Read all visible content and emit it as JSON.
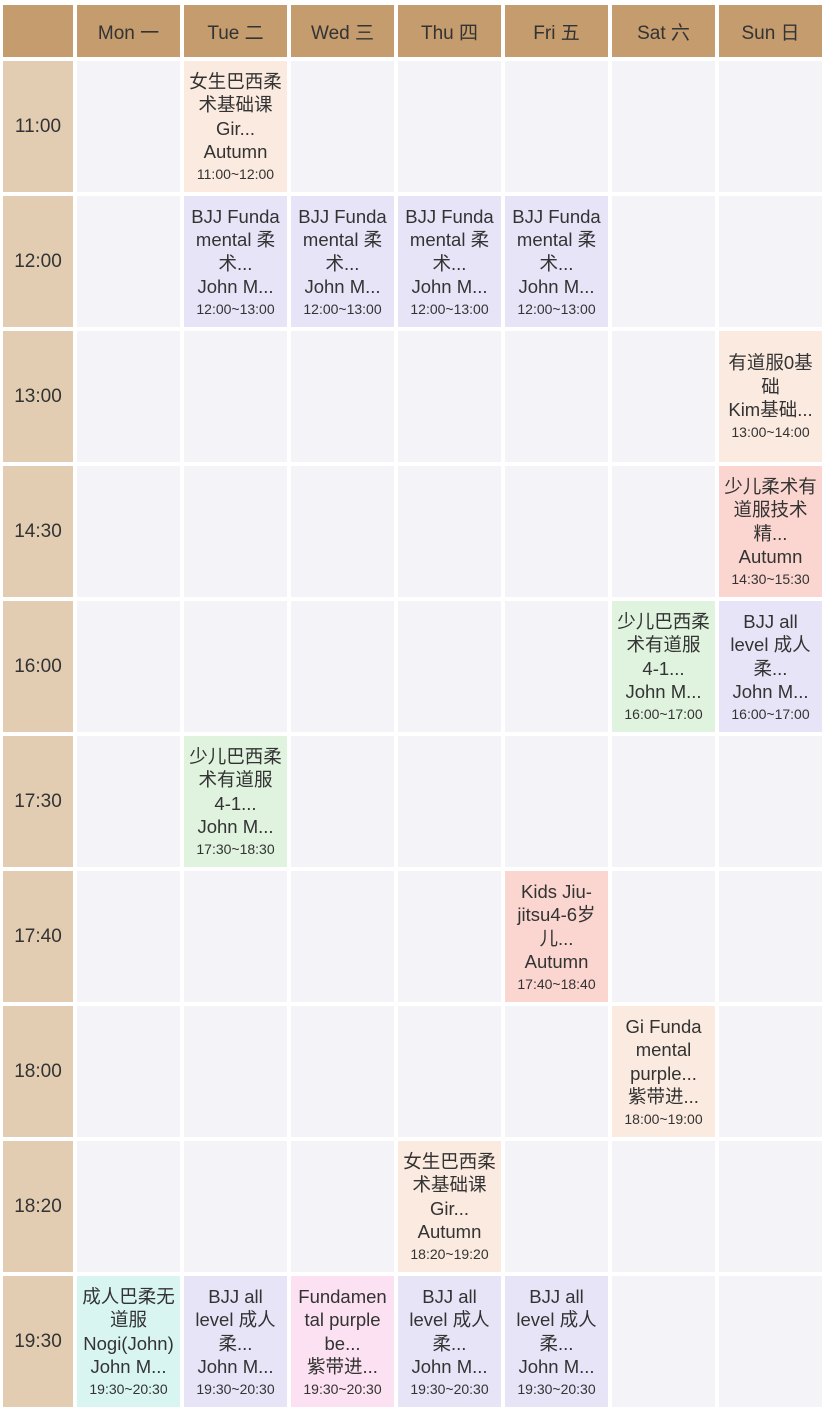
{
  "header": {
    "days": [
      "Mon 一",
      "Tue 二",
      "Wed 三",
      "Thu 四",
      "Fri 五",
      "Sat 六",
      "Sun 日"
    ]
  },
  "times": [
    "11:00",
    "12:00",
    "13:00",
    "14:30",
    "16:00",
    "17:30",
    "17:40",
    "18:00",
    "18:20",
    "19:30"
  ],
  "colors": {
    "header": "#c49c6e",
    "time_column": "#e2cdb2",
    "empty": "#f3f3f8",
    "peach": "#fbeadf",
    "lavender": "#e7e4f8",
    "green": "#dff3df",
    "red": "#fbd6d0",
    "teal": "#d9f5f1",
    "pink": "#fbe1f1"
  },
  "events": [
    {
      "row": 0,
      "day": 1,
      "color": "peach",
      "lines": [
        "女生巴西柔",
        "术基础课",
        "Gir...",
        "Autumn"
      ],
      "time": "11:00~12:00"
    },
    {
      "row": 1,
      "day": 1,
      "color": "lavender",
      "lines": [
        "BJJ Funda",
        "mental 柔",
        "术...",
        "John M..."
      ],
      "time": "12:00~13:00"
    },
    {
      "row": 1,
      "day": 2,
      "color": "lavender",
      "lines": [
        "BJJ Funda",
        "mental 柔",
        "术...",
        "John M..."
      ],
      "time": "12:00~13:00"
    },
    {
      "row": 1,
      "day": 3,
      "color": "lavender",
      "lines": [
        "BJJ Funda",
        "mental 柔",
        "术...",
        "John M..."
      ],
      "time": "12:00~13:00"
    },
    {
      "row": 1,
      "day": 4,
      "color": "lavender",
      "lines": [
        "BJJ Funda",
        "mental 柔",
        "术...",
        "John M..."
      ],
      "time": "12:00~13:00"
    },
    {
      "row": 2,
      "day": 6,
      "color": "peach",
      "lines": [
        "有道服0基",
        "础",
        "Kim基础..."
      ],
      "time": "13:00~14:00"
    },
    {
      "row": 3,
      "day": 6,
      "color": "red",
      "lines": [
        "少儿柔术有",
        "道服技术",
        "精...",
        "Autumn"
      ],
      "time": "14:30~15:30"
    },
    {
      "row": 4,
      "day": 5,
      "color": "green",
      "lines": [
        "少儿巴西柔",
        "术有道服",
        "4-1...",
        "John M..."
      ],
      "time": "16:00~17:00"
    },
    {
      "row": 4,
      "day": 6,
      "color": "lavender",
      "lines": [
        "BJJ all",
        "level 成人",
        "柔...",
        "John M..."
      ],
      "time": "16:00~17:00"
    },
    {
      "row": 5,
      "day": 1,
      "color": "green",
      "lines": [
        "少儿巴西柔",
        "术有道服",
        "4-1...",
        "John M..."
      ],
      "time": "17:30~18:30"
    },
    {
      "row": 6,
      "day": 4,
      "color": "red",
      "lines": [
        "Kids Jiu-",
        "jitsu4-6岁",
        "儿...",
        "Autumn"
      ],
      "time": "17:40~18:40"
    },
    {
      "row": 7,
      "day": 5,
      "color": "peach",
      "lines": [
        "Gi Funda",
        "mental",
        "purple...",
        "紫带进..."
      ],
      "time": "18:00~19:00"
    },
    {
      "row": 8,
      "day": 3,
      "color": "peach",
      "lines": [
        "女生巴西柔",
        "术基础课",
        "Gir...",
        "Autumn"
      ],
      "time": "18:20~19:20"
    },
    {
      "row": 9,
      "day": 0,
      "color": "teal",
      "lines": [
        "成人巴柔无",
        "道服",
        "Nogi(John)",
        "John M..."
      ],
      "time": "19:30~20:30"
    },
    {
      "row": 9,
      "day": 1,
      "color": "lavender",
      "lines": [
        "BJJ all",
        "level 成人",
        "柔...",
        "John M..."
      ],
      "time": "19:30~20:30"
    },
    {
      "row": 9,
      "day": 2,
      "color": "pink",
      "lines": [
        "Fundamen",
        "tal purple",
        "be...",
        "紫带进..."
      ],
      "time": "19:30~20:30"
    },
    {
      "row": 9,
      "day": 3,
      "color": "lavender",
      "lines": [
        "BJJ all",
        "level 成人",
        "柔...",
        "John M..."
      ],
      "time": "19:30~20:30"
    },
    {
      "row": 9,
      "day": 4,
      "color": "lavender",
      "lines": [
        "BJJ all",
        "level 成人",
        "柔...",
        "John M..."
      ],
      "time": "19:30~20:30"
    }
  ]
}
